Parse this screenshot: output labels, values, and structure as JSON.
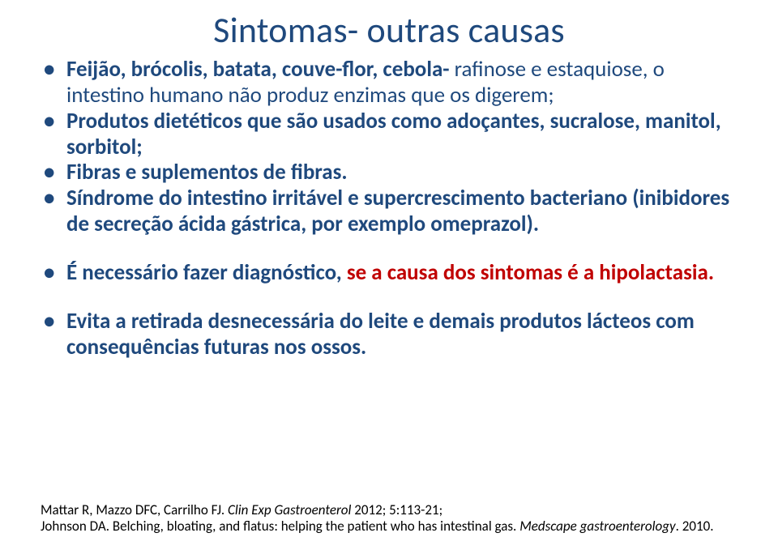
{
  "colors": {
    "title": "#1f497d",
    "body": "#1f497d",
    "refs": "#000000"
  },
  "title": "Sintomas- outras causas",
  "bullets": [
    {
      "parts": [
        {
          "text": "Feijão, brócolis, batata, couve-flor, cebola- ",
          "bold": true
        },
        {
          "text": "rafinose e estaquiose, o intestino humano não produz enzimas que os digerem;",
          "bold": false
        }
      ],
      "spaced": false
    },
    {
      "parts": [
        {
          "text": "Produtos dietéticos que são usados como adoçantes, sucralose, manitol, sorbitol;",
          "bold": true
        }
      ],
      "spaced": false
    },
    {
      "parts": [
        {
          "text": "Fibras e suplementos de fibras.",
          "bold": true
        }
      ],
      "spaced": false
    },
    {
      "parts": [
        {
          "text": "Síndrome do intestino irritável e supercrescimento bacteriano (inibidores de secreção ácida gástrica, por exemplo omeprazol).",
          "bold": true
        }
      ],
      "spaced": false
    },
    {
      "parts": [
        {
          "text": "É necessário fazer diagnóstico, ",
          "bold": true
        },
        {
          "text": "se a causa dos sintomas é a hipolactasia.",
          "bold": true,
          "color": "#c00000"
        }
      ],
      "spaced": true
    },
    {
      "parts": [
        {
          "text": "Evita a retirada desnecessária do leite e demais produtos lácteos com consequências futuras nos ossos.",
          "bold": true
        }
      ],
      "spaced": true
    }
  ],
  "refs": {
    "line1_a": "Mattar R, Mazzo DFC, Carrilho FJ. ",
    "line1_b_italic": "Clin Exp Gastroenterol ",
    "line1_c": "2012; 5:113-21;",
    "line2_a": "Johnson DA. Belching, bloating, and flatus: helping the patient who has intestinal gas. ",
    "line2_b_italic": "Medscape gastroenterology",
    "line2_c": ". 2010."
  }
}
